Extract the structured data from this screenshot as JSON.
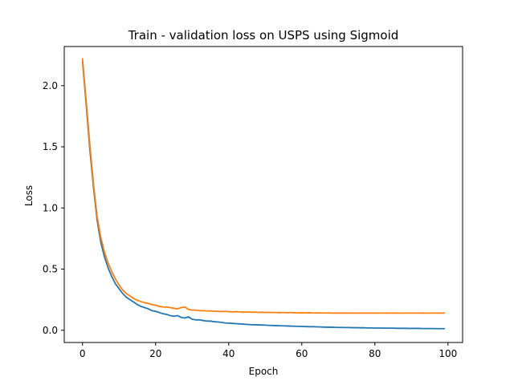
{
  "chart_data": {
    "type": "line",
    "title": "Train - validation loss on USPS using Sigmoid",
    "xlabel": "Epoch",
    "ylabel": "Loss",
    "xlim": [
      -5,
      104
    ],
    "ylim": [
      -0.1,
      2.32
    ],
    "xticks": [
      0,
      20,
      40,
      60,
      80,
      100
    ],
    "xtick_labels": [
      "0",
      "20",
      "40",
      "60",
      "80",
      "100"
    ],
    "yticks": [
      0.0,
      0.5,
      1.0,
      1.5,
      2.0
    ],
    "ytick_labels": [
      "0.0",
      "0.5",
      "1.0",
      "1.5",
      "2.0"
    ],
    "grid": false,
    "legend": "none",
    "x": [
      0,
      1,
      2,
      3,
      4,
      5,
      6,
      7,
      8,
      9,
      10,
      11,
      12,
      13,
      14,
      15,
      16,
      17,
      18,
      19,
      20,
      21,
      22,
      23,
      24,
      25,
      26,
      27,
      28,
      29,
      30,
      31,
      32,
      33,
      34,
      35,
      36,
      37,
      38,
      39,
      40,
      41,
      42,
      43,
      44,
      45,
      46,
      47,
      48,
      49,
      50,
      51,
      52,
      53,
      54,
      55,
      56,
      57,
      58,
      59,
      60,
      61,
      62,
      63,
      64,
      65,
      66,
      67,
      68,
      69,
      70,
      71,
      72,
      73,
      74,
      75,
      76,
      77,
      78,
      79,
      80,
      81,
      82,
      83,
      84,
      85,
      86,
      87,
      88,
      89,
      90,
      91,
      92,
      93,
      94,
      95,
      96,
      97,
      98,
      99
    ],
    "series": [
      {
        "color": "#1f77b4",
        "values": [
          2.2,
          1.85,
          1.48,
          1.17,
          0.9,
          0.72,
          0.6,
          0.51,
          0.44,
          0.38,
          0.34,
          0.3,
          0.27,
          0.25,
          0.23,
          0.21,
          0.195,
          0.185,
          0.175,
          0.16,
          0.155,
          0.145,
          0.135,
          0.13,
          0.12,
          0.115,
          0.12,
          0.105,
          0.1,
          0.11,
          0.09,
          0.085,
          0.085,
          0.08,
          0.075,
          0.075,
          0.07,
          0.068,
          0.065,
          0.06,
          0.058,
          0.056,
          0.054,
          0.052,
          0.05,
          0.048,
          0.046,
          0.045,
          0.044,
          0.043,
          0.042,
          0.04,
          0.039,
          0.038,
          0.037,
          0.036,
          0.035,
          0.034,
          0.033,
          0.032,
          0.031,
          0.03,
          0.029,
          0.029,
          0.028,
          0.027,
          0.026,
          0.025,
          0.025,
          0.024,
          0.023,
          0.023,
          0.022,
          0.022,
          0.021,
          0.021,
          0.02,
          0.02,
          0.019,
          0.019,
          0.018,
          0.018,
          0.018,
          0.017,
          0.017,
          0.017,
          0.016,
          0.016,
          0.016,
          0.015,
          0.015,
          0.015,
          0.015,
          0.014,
          0.014,
          0.014,
          0.014,
          0.013,
          0.013,
          0.013
        ]
      },
      {
        "color": "#ff7f0e",
        "values": [
          2.22,
          1.88,
          1.52,
          1.2,
          0.93,
          0.76,
          0.64,
          0.55,
          0.48,
          0.42,
          0.37,
          0.33,
          0.3,
          0.28,
          0.26,
          0.245,
          0.235,
          0.225,
          0.22,
          0.21,
          0.205,
          0.195,
          0.19,
          0.19,
          0.185,
          0.18,
          0.175,
          0.185,
          0.19,
          0.17,
          0.165,
          0.165,
          0.16,
          0.16,
          0.158,
          0.158,
          0.155,
          0.155,
          0.153,
          0.155,
          0.152,
          0.15,
          0.152,
          0.15,
          0.148,
          0.15,
          0.148,
          0.148,
          0.146,
          0.148,
          0.145,
          0.147,
          0.145,
          0.145,
          0.144,
          0.145,
          0.143,
          0.145,
          0.143,
          0.142,
          0.143,
          0.142,
          0.143,
          0.141,
          0.142,
          0.142,
          0.141,
          0.142,
          0.14,
          0.141,
          0.14,
          0.141,
          0.14,
          0.141,
          0.14,
          0.14,
          0.141,
          0.14,
          0.14,
          0.141,
          0.14,
          0.14,
          0.14,
          0.141,
          0.14,
          0.14,
          0.141,
          0.14,
          0.14,
          0.14,
          0.141,
          0.14,
          0.14,
          0.141,
          0.14,
          0.14,
          0.14,
          0.141,
          0.14,
          0.14
        ]
      }
    ]
  }
}
